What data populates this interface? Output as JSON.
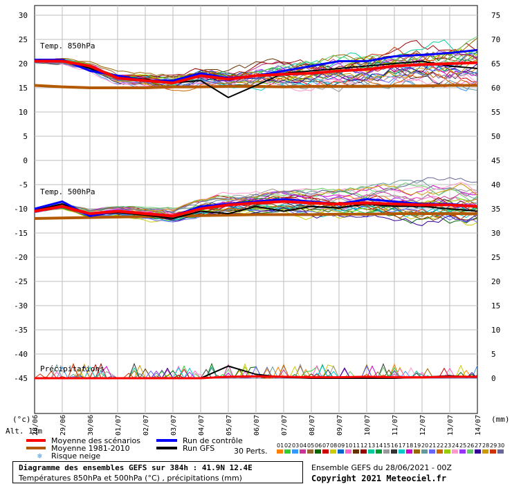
{
  "chart_data": {
    "type": "line",
    "dates": [
      "28/06",
      "29/06",
      "30/06",
      "01/07",
      "02/07",
      "03/07",
      "04/07",
      "05/07",
      "06/07",
      "07/07",
      "08/07",
      "09/07",
      "10/07",
      "11/07",
      "12/07",
      "13/07",
      "14/07"
    ],
    "left_ticks": [
      "30",
      "25",
      "20",
      "15",
      "10",
      "5",
      "0",
      "-5",
      "-10",
      "-15",
      "-20",
      "-25",
      "-30",
      "-35",
      "-40",
      "-45"
    ],
    "right_ticks": [
      "75",
      "70",
      "65",
      "60",
      "55",
      "50",
      "45",
      "40",
      "35",
      "30",
      "25",
      "20",
      "15",
      "10",
      "5",
      "0"
    ],
    "left_unit": "(°c)",
    "right_unit": "(mm)",
    "altitude": "Alt. 13m",
    "panel_labels": {
      "t850": "Temp. 850hPa",
      "t500": "Temp. 500hPa",
      "precip": "Précipitations"
    },
    "series": [
      {
        "name": "Moyenne des scénarios",
        "color": "#ff0000",
        "t850": [
          20.5,
          20.5,
          19.5,
          17.0,
          16.5,
          16.0,
          17.5,
          16.8,
          17.5,
          17.8,
          18.0,
          18.5,
          18.8,
          19.5,
          19.8,
          20.0,
          20.2
        ],
        "t500": [
          -10.5,
          -9.5,
          -11.0,
          -10.5,
          -11.0,
          -11.5,
          -10.0,
          -9.2,
          -8.8,
          -8.5,
          -8.8,
          -9.0,
          -8.8,
          -9.0,
          -9.2,
          -9.2,
          -9.5
        ],
        "precip": [
          0,
          0,
          0,
          0,
          0,
          0,
          0,
          0.3,
          0.4,
          0.3,
          0.2,
          0.2,
          0.3,
          0.2,
          0.2,
          0.3,
          0.3
        ]
      },
      {
        "name": "Moyenne 1981-2010",
        "color": "#b35900",
        "t850": [
          15.5,
          15.2,
          15.0,
          15.0,
          15.0,
          15.2,
          15.2,
          15.3,
          15.3,
          15.2,
          15.3,
          15.3,
          15.3,
          15.4,
          15.4,
          15.5,
          15.5
        ],
        "t500": [
          -12.0,
          -11.9,
          -11.8,
          -11.7,
          -11.6,
          -11.5,
          -11.4,
          -11.3,
          -11.2,
          -11.2,
          -11.2,
          -11.1,
          -11.1,
          -11.0,
          -11.0,
          -11.0,
          -11.0
        ]
      },
      {
        "name": "Run de contrôle",
        "color": "#0000ff",
        "t850": [
          20.8,
          20.8,
          18.5,
          17.5,
          16.5,
          16.5,
          18.0,
          17.0,
          17.5,
          18.5,
          19.5,
          20.5,
          20.5,
          21.5,
          21.8,
          22.2,
          22.8
        ],
        "t500": [
          -10.0,
          -8.5,
          -11.5,
          -10.5,
          -11.0,
          -11.5,
          -9.5,
          -9.0,
          -8.5,
          -8.0,
          -8.5,
          -9.0,
          -8.0,
          -8.5,
          -9.0,
          -9.0,
          -9.5
        ]
      },
      {
        "name": "Run GFS",
        "color": "#000000",
        "t850": [
          20.6,
          20.8,
          19.0,
          17.0,
          16.8,
          16.0,
          16.5,
          13.0,
          15.5,
          18.0,
          18.5,
          19.0,
          19.5,
          20.0,
          20.5,
          19.5,
          19.0
        ],
        "t500": [
          -10.3,
          -9.0,
          -11.2,
          -10.8,
          -11.3,
          -12.0,
          -10.5,
          -11.0,
          -9.5,
          -10.5,
          -9.5,
          -9.8,
          -9.0,
          -9.5,
          -9.5,
          -10.0,
          -10.5
        ],
        "precip": [
          0,
          0,
          0,
          0,
          0,
          0,
          0,
          2.5,
          0.8,
          0.2,
          0,
          0,
          0,
          0,
          0.2,
          0.5,
          0.2
        ]
      }
    ],
    "t850_range": [
      -45,
      30
    ],
    "t500_range": [
      -45,
      30
    ],
    "precip_range": [
      0,
      75
    ],
    "grid": true
  },
  "legend": {
    "mean": "Moyenne des scénarios",
    "climo": "Moyenne 1981-2010",
    "snow": "Risque neige",
    "control": "Run de contrôle",
    "gfs": "Run GFS",
    "perts": "30 Perts.",
    "pert_ids": [
      "01",
      "02",
      "03",
      "04",
      "05",
      "06",
      "07",
      "08",
      "09",
      "10",
      "11",
      "12",
      "13",
      "14",
      "15",
      "16",
      "17",
      "18",
      "19",
      "20",
      "21",
      "22",
      "23",
      "24",
      "25",
      "26",
      "27",
      "28",
      "29",
      "30"
    ],
    "pert_colors": [
      "#ff8000",
      "#33cc33",
      "#3399ff",
      "#cc3399",
      "#996633",
      "#006600",
      "#cc0000",
      "#cccc00",
      "#0066cc",
      "#ff66cc",
      "#663300",
      "#990000",
      "#00cc99",
      "#009933",
      "#999999",
      "#333333",
      "#00cccc",
      "#cc00cc",
      "#996600",
      "#669999",
      "#6666ff",
      "#cc6600",
      "#99cc00",
      "#ff99cc",
      "#9933ff",
      "#66cc66",
      "#330099",
      "#cc9900",
      "#cc3300",
      "#666699"
    ]
  },
  "footer": {
    "title": "Diagramme des ensembles GEFS sur 384h : 41.9N 12.4E",
    "subtitle": "Températures 850hPa et 500hPa (°C) , précipitations (mm)",
    "run_info": "Ensemble GEFS du 28/06/2021 - 00Z",
    "copyright": "Copyright 2021 Meteociel.fr"
  }
}
